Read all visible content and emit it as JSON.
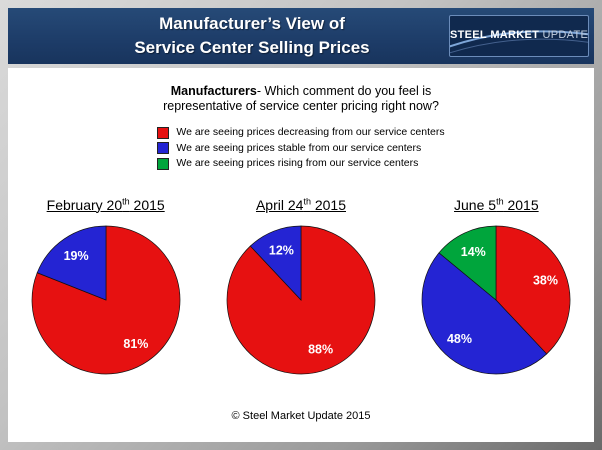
{
  "slide": {
    "title_line1": "Manufacturer’s View of",
    "title_line2": "Service Center Selling Prices",
    "logo": {
      "steel": "STEEL",
      "market": "MARKET",
      "update": "UPDATE"
    },
    "question": {
      "bold": "Manufacturers",
      "rest": "- Which comment do you feel is representative of service center pricing right now?"
    },
    "footer": "© Steel Market Update 2015"
  },
  "chart_data": {
    "type": "pie",
    "title": "Manufacturer’s View of Service Center Selling Prices",
    "question": "Manufacturers- Which comment do you feel is representative of service center pricing right now?",
    "legend": [
      {
        "label": "We are seeing prices decreasing from our service centers",
        "color": "#E61111"
      },
      {
        "label": "We are seeing prices stable from our service centers",
        "color": "#2424D3"
      },
      {
        "label": "We are seeing prices rising from our service centers",
        "color": "#00A53C"
      }
    ],
    "pies": [
      {
        "title": "February 20th 2015",
        "date_pre": "February 20",
        "date_sup": "th",
        "date_post": " 2015",
        "slices": [
          {
            "label": "decreasing",
            "pct": 81,
            "color": "#E61111"
          },
          {
            "label": "stable",
            "pct": 19,
            "color": "#2424D3"
          }
        ]
      },
      {
        "title": "April 24th 2015",
        "date_pre": "April 24",
        "date_sup": "th",
        "date_post": " 2015",
        "slices": [
          {
            "label": "decreasing",
            "pct": 88,
            "color": "#E61111"
          },
          {
            "label": "stable",
            "pct": 12,
            "color": "#2424D3"
          }
        ]
      },
      {
        "title": "June 5th 2015",
        "date_pre": "June 5",
        "date_sup": "th",
        "date_post": " 2015",
        "slices": [
          {
            "label": "decreasing",
            "pct": 38,
            "color": "#E61111"
          },
          {
            "label": "stable",
            "pct": 48,
            "color": "#2424D3"
          },
          {
            "label": "rising",
            "pct": 14,
            "color": "#00A53C"
          }
        ]
      }
    ]
  }
}
